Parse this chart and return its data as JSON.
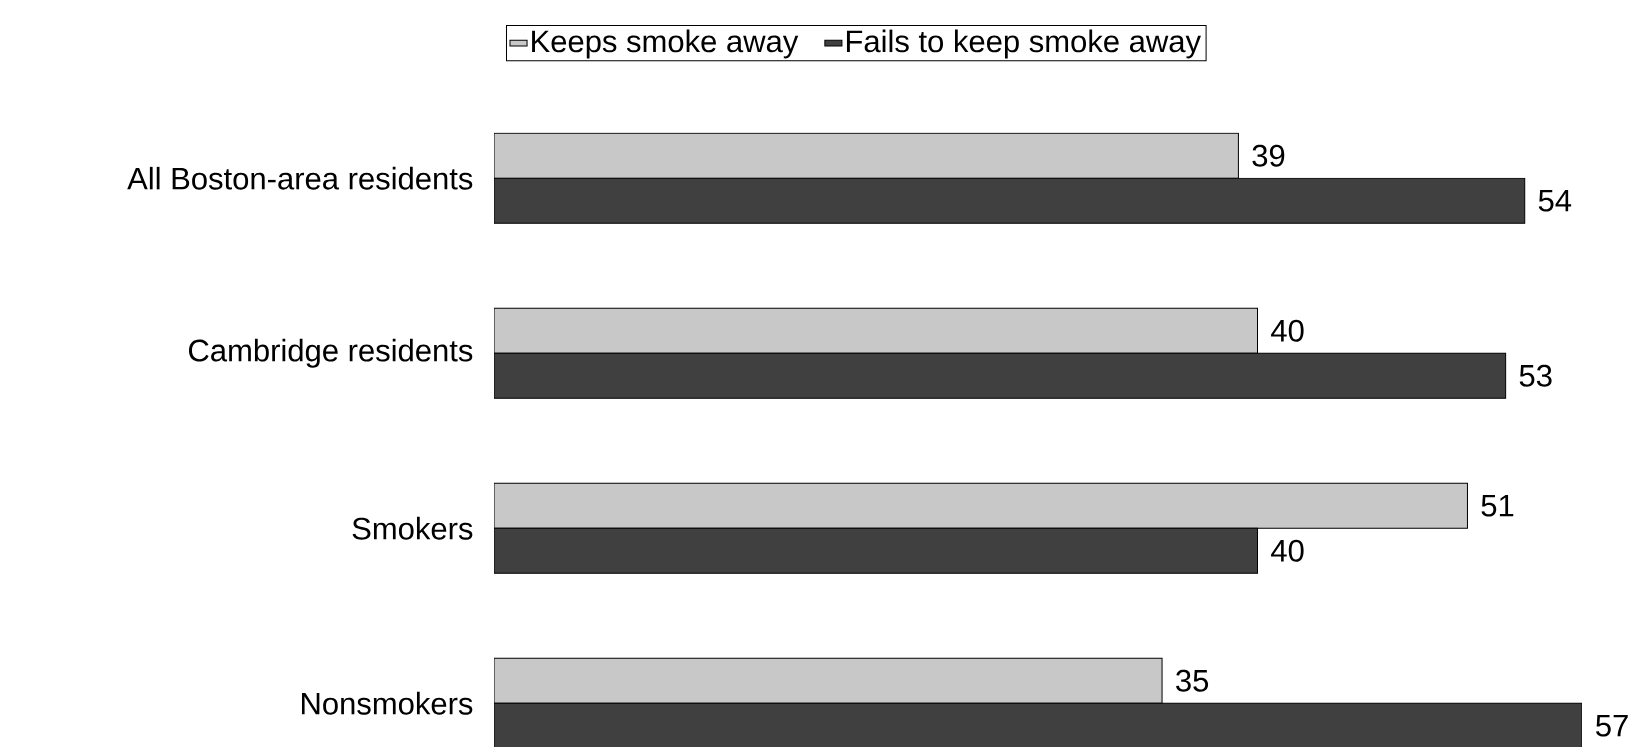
{
  "chart_data": {
    "type": "bar",
    "orientation": "horizontal",
    "categories": [
      "All Boston-area residents",
      "Cambridge residents",
      "Smokers",
      "Nonsmokers"
    ],
    "series": [
      {
        "name": "Keeps smoke away",
        "color": "#c8c8c8",
        "values": [
          39,
          40,
          51,
          35
        ]
      },
      {
        "name": "Fails to keep smoke away",
        "color": "#404040",
        "values": [
          54,
          53,
          40,
          57
        ]
      }
    ],
    "xlim": [
      0,
      57
    ],
    "tick_labels": "y",
    "data_labels": true,
    "legend": "top"
  }
}
